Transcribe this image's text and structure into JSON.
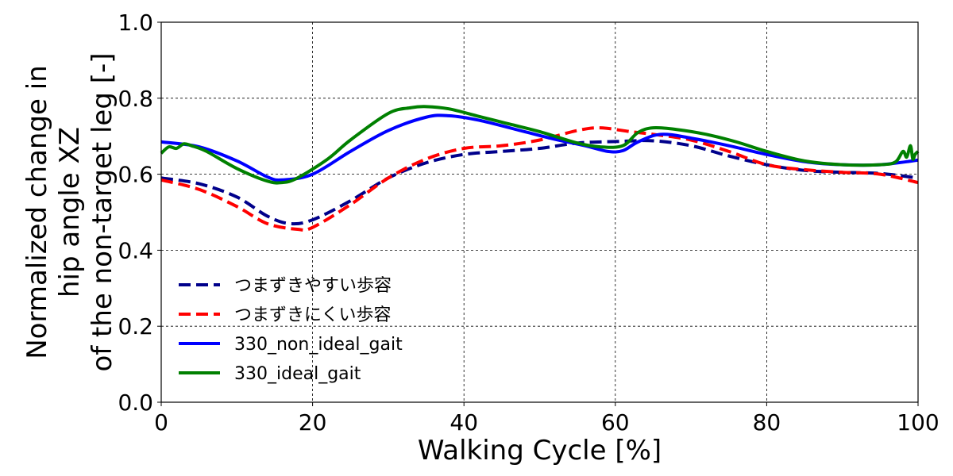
{
  "chart_data": {
    "type": "line",
    "xlabel": "Walking Cycle [%]",
    "ylabel_lines": [
      "Normalized change in",
      "hip angle XZ",
      "of the non-target leg [-]"
    ],
    "xlim": [
      0,
      100
    ],
    "ylim": [
      0.0,
      1.0
    ],
    "xticks": [
      "0",
      "20",
      "40",
      "60",
      "80",
      "100"
    ],
    "yticks": [
      "0.0",
      "0.2",
      "0.4",
      "0.6",
      "0.8",
      "1.0"
    ],
    "grid": true,
    "legend_position": "lower-left",
    "series": [
      {
        "name": "つまずきやすい歩容",
        "color": "#00008b",
        "style": "dashed",
        "x": [
          0,
          5,
          10,
          14,
          17,
          20,
          25,
          30,
          35,
          40,
          45,
          50,
          55,
          60,
          65,
          70,
          75,
          80,
          85,
          90,
          95,
          100
        ],
        "y": [
          0.59,
          0.575,
          0.54,
          0.49,
          0.47,
          0.48,
          0.53,
          0.59,
          0.63,
          0.652,
          0.66,
          0.668,
          0.682,
          0.686,
          0.688,
          0.675,
          0.648,
          0.625,
          0.61,
          0.605,
          0.602,
          0.59
        ]
      },
      {
        "name": "つまずきにくい歩容",
        "color": "#ff0000",
        "style": "dashed",
        "x": [
          0,
          5,
          10,
          14,
          18,
          20,
          25,
          30,
          35,
          40,
          45,
          50,
          55,
          58,
          62,
          65,
          70,
          75,
          80,
          85,
          90,
          95,
          100
        ],
        "y": [
          0.585,
          0.56,
          0.515,
          0.47,
          0.455,
          0.46,
          0.52,
          0.59,
          0.64,
          0.668,
          0.675,
          0.69,
          0.715,
          0.722,
          0.712,
          0.705,
          0.69,
          0.66,
          0.625,
          0.612,
          0.605,
          0.6,
          0.578
        ]
      },
      {
        "name": "330_non_ideal_gait",
        "color": "#0000ff",
        "style": "solid",
        "x": [
          0,
          5,
          10,
          14,
          16,
          20,
          25,
          30,
          35,
          38,
          42,
          48,
          52,
          56,
          59,
          61,
          63,
          66,
          70,
          75,
          80,
          85,
          90,
          95,
          100
        ],
        "y": [
          0.685,
          0.672,
          0.635,
          0.593,
          0.585,
          0.6,
          0.66,
          0.715,
          0.75,
          0.754,
          0.742,
          0.712,
          0.692,
          0.675,
          0.66,
          0.662,
          0.685,
          0.705,
          0.695,
          0.675,
          0.652,
          0.633,
          0.625,
          0.625,
          0.637
        ]
      },
      {
        "name": "330_ideal_gait",
        "color": "#008000",
        "style": "solid",
        "x": [
          0,
          1,
          2,
          3,
          4,
          6,
          10,
          14,
          16,
          18,
          22,
          25,
          30,
          33,
          35,
          38,
          42,
          46,
          50,
          55,
          58,
          61,
          63,
          65,
          68,
          72,
          76,
          80,
          85,
          90,
          95,
          97,
          98,
          98.5,
          99,
          99.3,
          99.6,
          100
        ],
        "y": [
          0.655,
          0.672,
          0.668,
          0.68,
          0.675,
          0.66,
          0.615,
          0.582,
          0.578,
          0.59,
          0.64,
          0.69,
          0.76,
          0.775,
          0.778,
          0.772,
          0.752,
          0.732,
          0.712,
          0.682,
          0.672,
          0.675,
          0.71,
          0.722,
          0.718,
          0.705,
          0.685,
          0.66,
          0.635,
          0.625,
          0.625,
          0.632,
          0.66,
          0.645,
          0.675,
          0.64,
          0.652,
          0.66
        ]
      }
    ]
  }
}
